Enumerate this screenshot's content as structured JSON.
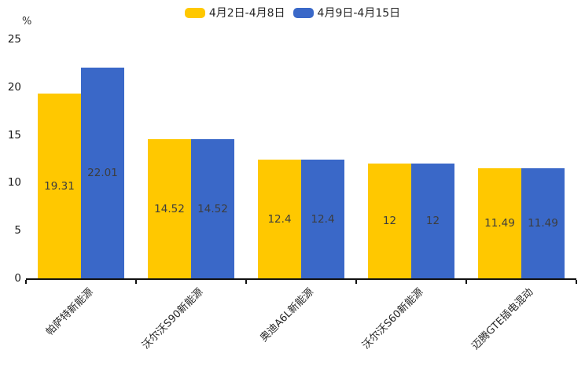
{
  "chart_data": {
    "type": "bar",
    "title": "",
    "ylabel": "%",
    "xlabel": "",
    "ylim": [
      0,
      25
    ],
    "yticks": [
      0,
      5,
      10,
      15,
      20,
      25
    ],
    "grid": false,
    "legend_position": "top-center",
    "categories": [
      "帕萨特新能源",
      "沃尔沃S90新能源",
      "奥迪A6L新能源",
      "沃尔沃S60新能源",
      "迈腾GTE插电混动"
    ],
    "series": [
      {
        "name": "4月2日-4月8日",
        "color": "#FFC800",
        "values": [
          19.31,
          14.52,
          12.4,
          12,
          11.49
        ]
      },
      {
        "name": "4月9日-4月15日",
        "color": "#3A68C8",
        "values": [
          22.01,
          14.52,
          12.4,
          12,
          11.49
        ]
      }
    ],
    "value_labels": [
      [
        "19.31",
        "14.52",
        "12.4",
        "12",
        "11.49"
      ],
      [
        "22.01",
        "14.52",
        "12.4",
        "12",
        "11.49"
      ]
    ]
  }
}
